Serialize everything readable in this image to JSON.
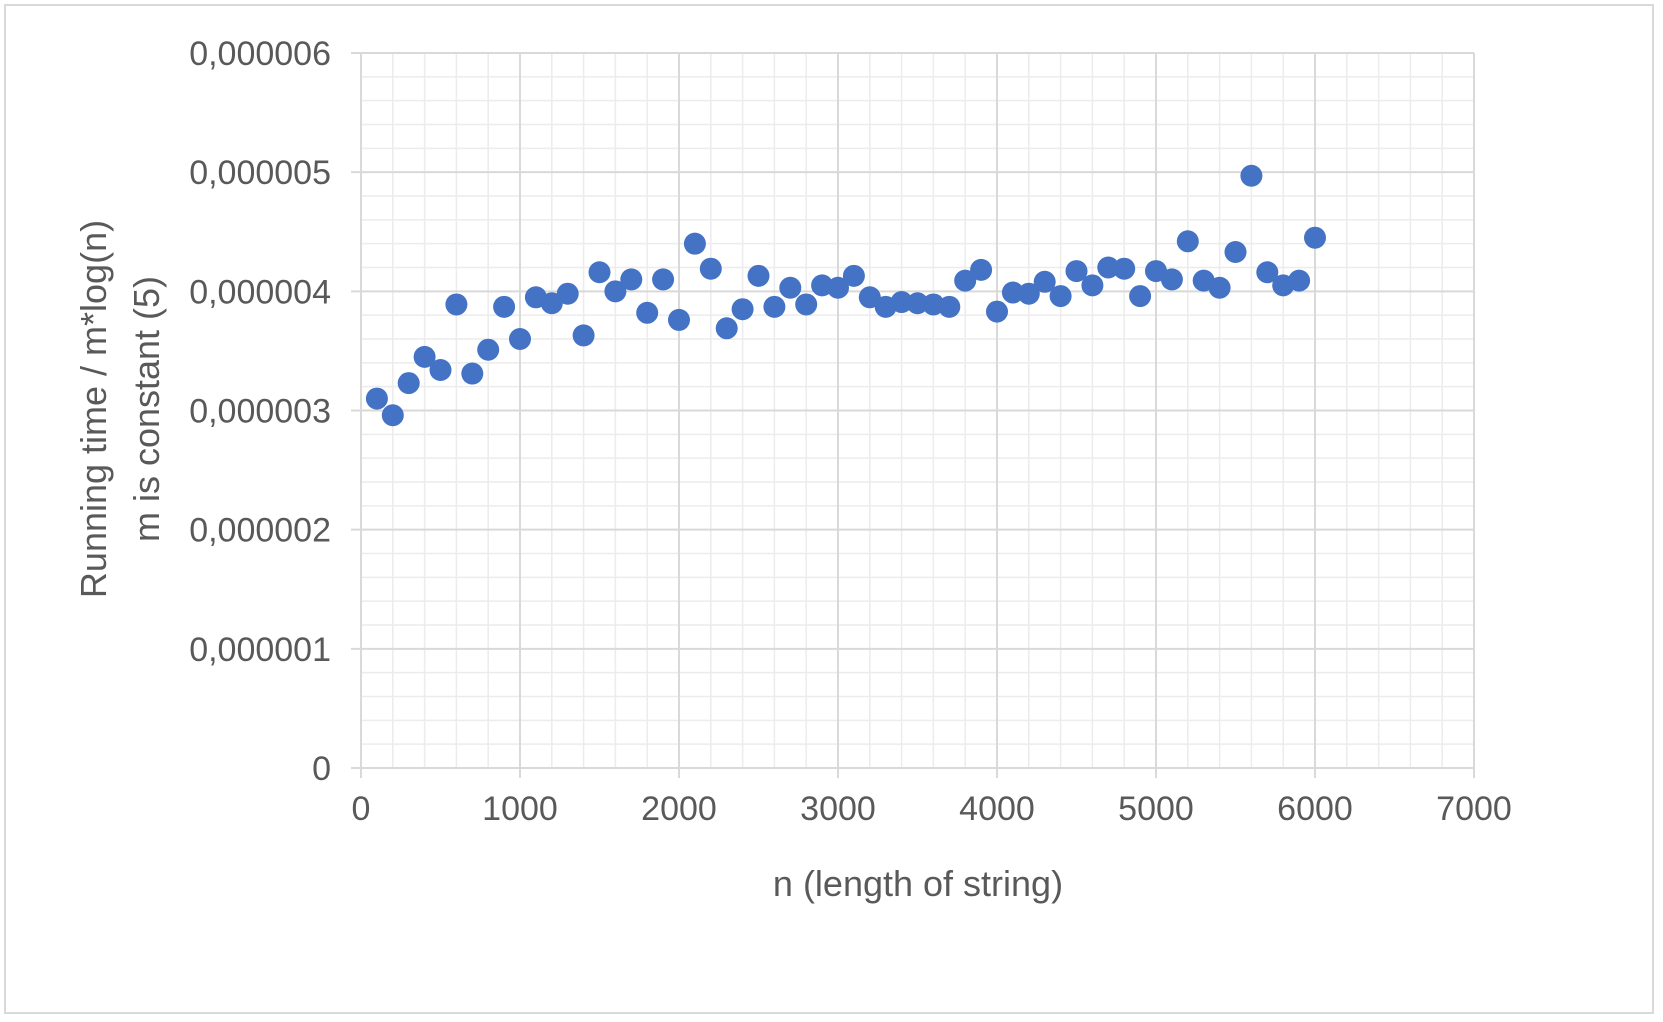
{
  "chart_data": {
    "type": "scatter",
    "title": "",
    "xlabel": "n (length of string)",
    "ylabel": [
      "Running time / m*log(n)",
      "m is constant (5)"
    ],
    "xlim": [
      0,
      7000
    ],
    "ylim": [
      0,
      6e-06
    ],
    "x_ticks": [
      0,
      1000,
      2000,
      3000,
      4000,
      5000,
      6000,
      7000
    ],
    "x_tick_labels": [
      "0",
      "1000",
      "2000",
      "3000",
      "4000",
      "5000",
      "6000",
      "7000"
    ],
    "y_ticks": [
      0,
      1e-06,
      2e-06,
      3e-06,
      4e-06,
      5e-06,
      6e-06
    ],
    "y_tick_labels": [
      "0",
      "0,000001",
      "0,000002",
      "0,000003",
      "0,000004",
      "0,000005",
      "0,000006"
    ],
    "grid": true,
    "minor_grid": true,
    "legend": "none",
    "marker_color": "#4472c4",
    "series": [
      {
        "x": [
          100,
          200,
          300,
          400,
          500,
          600,
          700,
          800,
          900,
          1000,
          1100,
          1200,
          1300,
          1400,
          1500,
          1600,
          1700,
          1800,
          1900,
          2000,
          2100,
          2200,
          2300,
          2400,
          2500,
          2600,
          2700,
          2800,
          2900,
          3000,
          3100,
          3200,
          3300,
          3400,
          3500,
          3600,
          3700,
          3800,
          3900,
          4000,
          4100,
          4200,
          4300,
          4400,
          4500,
          4600,
          4700,
          4800,
          4900,
          5000,
          5100,
          5200,
          5300,
          5400,
          5500,
          5600,
          5700,
          5800,
          5900,
          6000
        ],
        "values": [
          3.1e-06,
          2.96e-06,
          3.23e-06,
          3.45e-06,
          3.34e-06,
          3.89e-06,
          3.31e-06,
          3.51e-06,
          3.87e-06,
          3.6e-06,
          3.95e-06,
          3.9e-06,
          3.98e-06,
          3.63e-06,
          4.16e-06,
          4e-06,
          4.1e-06,
          3.82e-06,
          4.1e-06,
          3.76e-06,
          4.4e-06,
          4.19e-06,
          3.69e-06,
          3.85e-06,
          4.13e-06,
          3.87e-06,
          4.03e-06,
          3.89e-06,
          4.05e-06,
          4.03e-06,
          4.13e-06,
          3.95e-06,
          3.87e-06,
          3.91e-06,
          3.9e-06,
          3.89e-06,
          3.87e-06,
          4.09e-06,
          4.18e-06,
          3.83e-06,
          3.99e-06,
          3.98e-06,
          4.08e-06,
          3.96e-06,
          4.17e-06,
          4.05e-06,
          4.2e-06,
          4.19e-06,
          3.96e-06,
          4.17e-06,
          4.1e-06,
          4.42e-06,
          4.09e-06,
          4.03e-06,
          4.33e-06,
          4.97e-06,
          4.16e-06,
          4.05e-06,
          4.09e-06,
          4.45e-06
        ]
      }
    ]
  }
}
